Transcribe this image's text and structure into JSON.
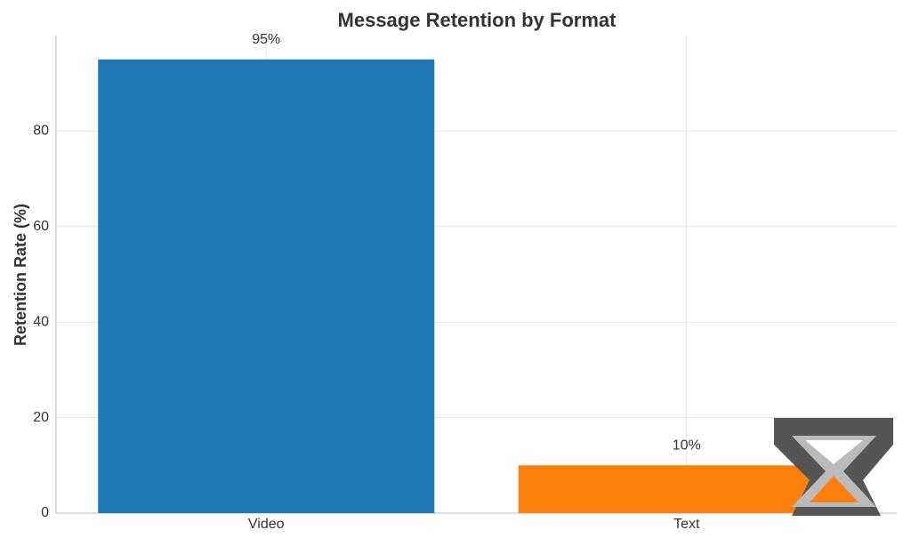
{
  "chart_data": {
    "type": "bar",
    "title": "Message Retention by Format",
    "y_label": "Retention Rate (%)",
    "categories": [
      "Video",
      "Text"
    ],
    "values": [
      95,
      10
    ],
    "value_labels": [
      "95%",
      "10%"
    ],
    "colors": [
      "#1f77b4",
      "#ff7f0e"
    ],
    "ylim": [
      0,
      100
    ],
    "yticks": [
      0,
      20,
      40,
      60,
      80
    ],
    "grid": true
  }
}
